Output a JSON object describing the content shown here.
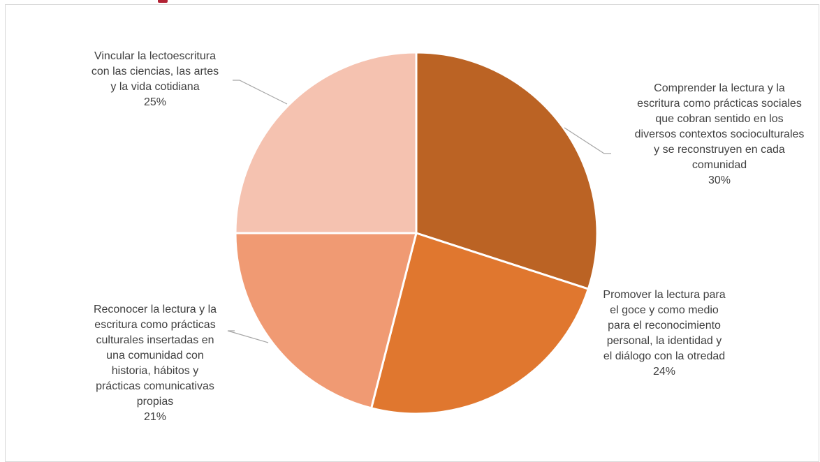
{
  "chart_data": {
    "type": "pie",
    "title": "",
    "slices": [
      {
        "label_lines": [
          "Comprender la lectura y la",
          "escritura como prácticas sociales",
          "que cobran sentido en los",
          "diversos contextos socioculturales",
          "y se reconstruyen en cada",
          "comunidad"
        ],
        "percent_label": "30%",
        "value": 30,
        "color": "#bb6324"
      },
      {
        "label_lines": [
          "Promover la lectura para",
          "el goce y como medio",
          "para el reconocimiento",
          "personal, la identidad y",
          "el diálogo con la otredad"
        ],
        "percent_label": "24%",
        "value": 24,
        "color": "#e0772f"
      },
      {
        "label_lines": [
          "Reconocer la lectura y la",
          "escritura como prácticas",
          "culturales insertadas en",
          "una comunidad con",
          "historia, hábitos y",
          "prácticas comunicativas",
          "propias"
        ],
        "percent_label": "21%",
        "value": 21,
        "color": "#f09a73"
      },
      {
        "label_lines": [
          "Vincular la lectoescritura",
          "con las ciencias, las artes",
          "y la vida cotidiana"
        ],
        "percent_label": "25%",
        "value": 25,
        "color": "#f5c2b0"
      }
    ]
  }
}
